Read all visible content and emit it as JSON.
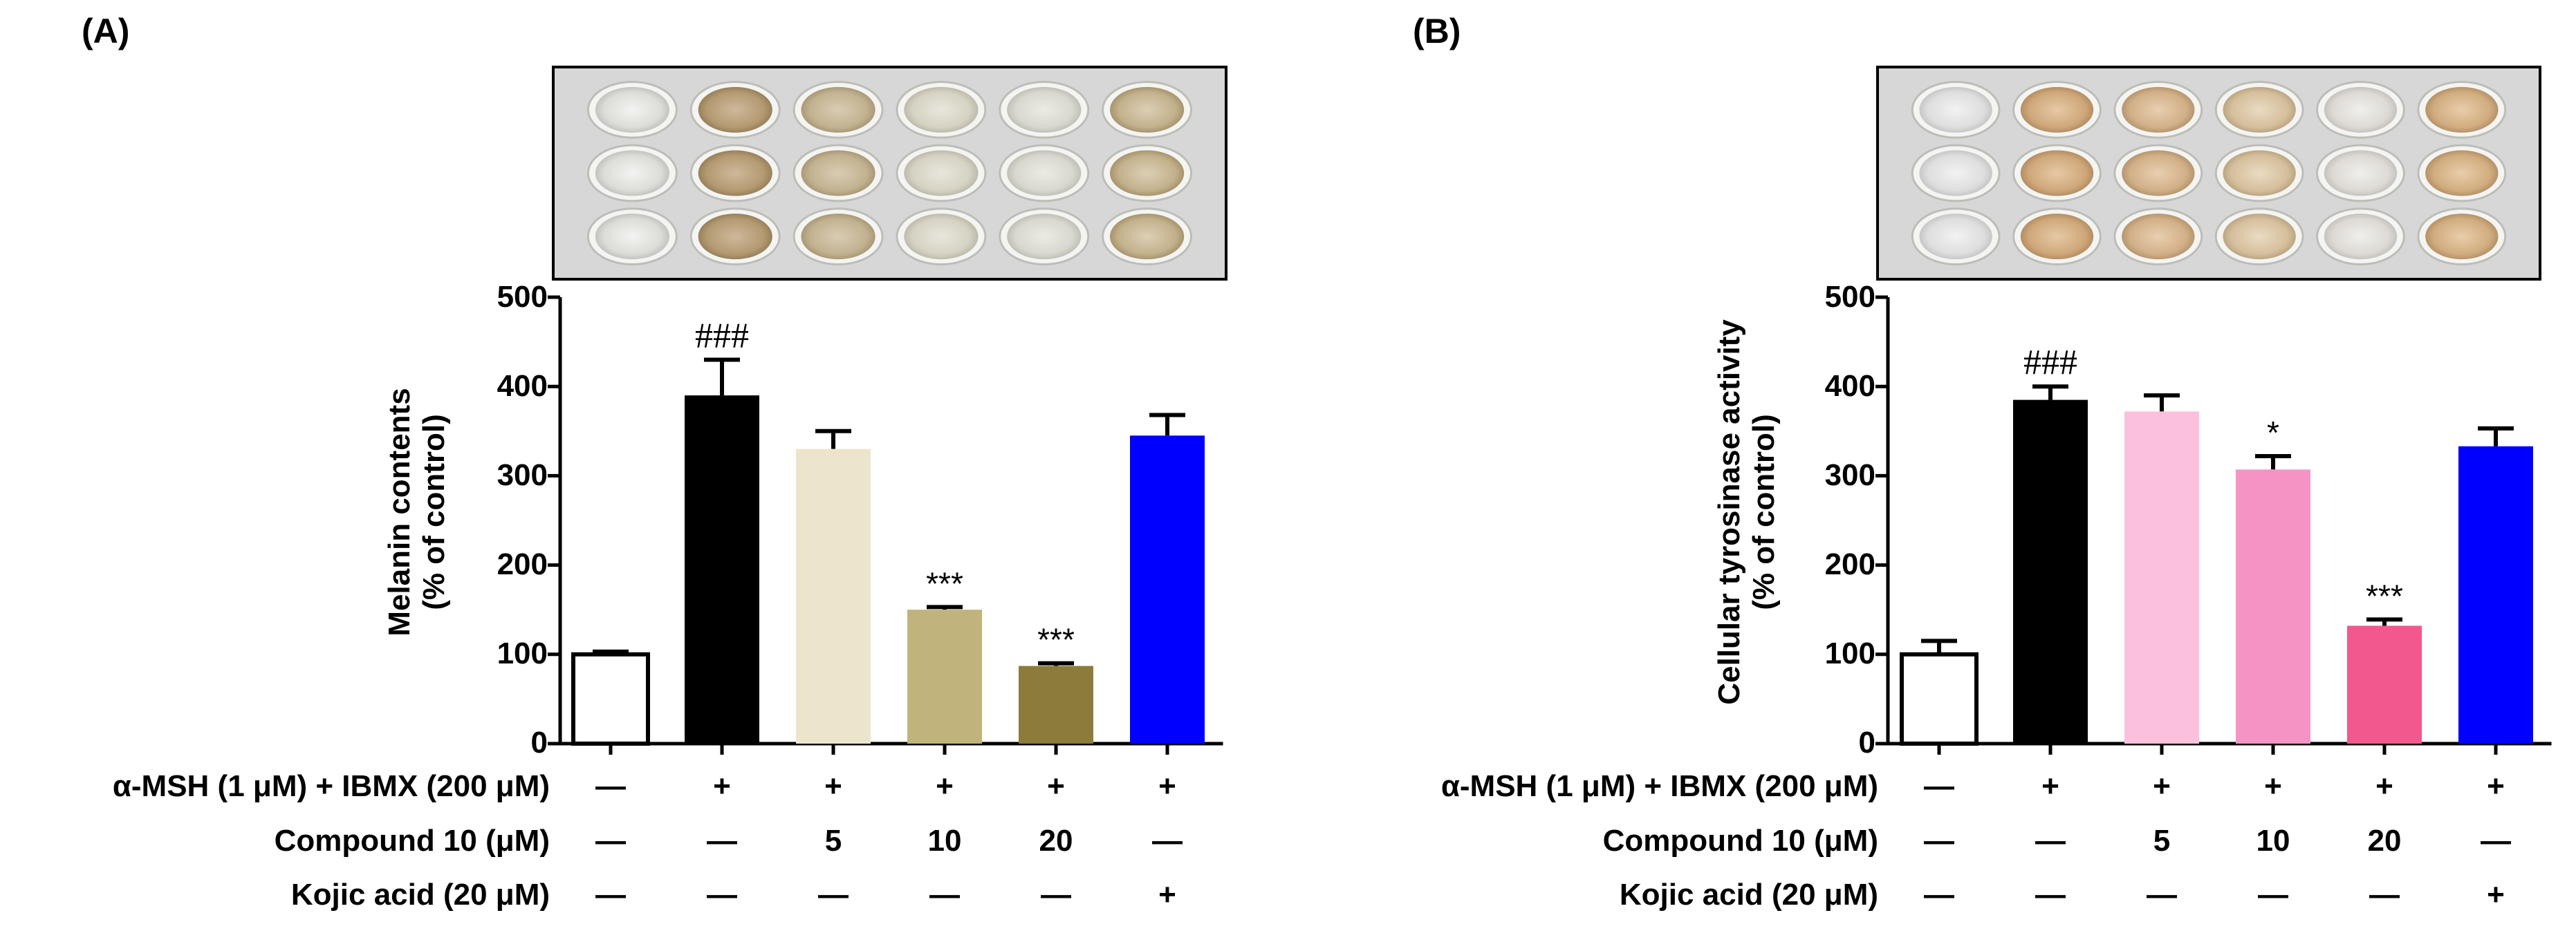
{
  "chart_data": [
    {
      "type": "bar",
      "panel": "(A)",
      "ylabel_line1": "Melanin contents",
      "ylabel_line2": "(% of control)",
      "ylim": [
        0,
        500
      ],
      "yticks": [
        "0",
        "100",
        "200",
        "300",
        "400",
        "500"
      ],
      "values": [
        100,
        390,
        330,
        150,
        87,
        345
      ],
      "errors": [
        3,
        40,
        20,
        3,
        3,
        23
      ],
      "colors": [
        "#ffffff",
        "#000000",
        "#ede5cb",
        "#c1b37c",
        "#8c7b3a",
        "#0000ff"
      ],
      "significance": [
        "",
        "###",
        "",
        "***",
        "***",
        ""
      ],
      "conditions": [
        {
          "label": "α-MSH (1 μM) + IBMX (200 μM)",
          "values": [
            "—",
            "+",
            "+",
            "+",
            "+",
            "+"
          ]
        },
        {
          "label": "Compound 10 (μM)",
          "values": [
            "—",
            "—",
            "5",
            "10",
            "20",
            "—"
          ]
        },
        {
          "label": "Kojic acid (20 μM)",
          "values": [
            "—",
            "—",
            "—",
            "—",
            "—",
            "+"
          ]
        }
      ]
    },
    {
      "type": "bar",
      "panel": "(B)",
      "ylabel_line1": "Cellular tyrosinase activity",
      "ylabel_line2": "(% of control)",
      "ylim": [
        0,
        500
      ],
      "yticks": [
        "0",
        "100",
        "200",
        "300",
        "400",
        "500"
      ],
      "values": [
        100,
        385,
        372,
        307,
        132,
        333
      ],
      "errors": [
        15,
        15,
        18,
        15,
        7,
        20
      ],
      "colors": [
        "#ffffff",
        "#000000",
        "#fbc1dc",
        "#f594c4",
        "#f2588e",
        "#0000ff"
      ],
      "significance": [
        "",
        "###",
        "",
        "*",
        "***",
        ""
      ],
      "conditions": [
        {
          "label": "α-MSH (1 μM) + IBMX (200 μM)",
          "values": [
            "—",
            "+",
            "+",
            "+",
            "+",
            "+"
          ]
        },
        {
          "label": "Compound 10 (μM)",
          "values": [
            "—",
            "—",
            "5",
            "10",
            "20",
            "—"
          ]
        },
        {
          "label": "Kojic acid (20 μM)",
          "values": [
            "—",
            "—",
            "—",
            "—",
            "—",
            "+"
          ]
        }
      ]
    }
  ]
}
